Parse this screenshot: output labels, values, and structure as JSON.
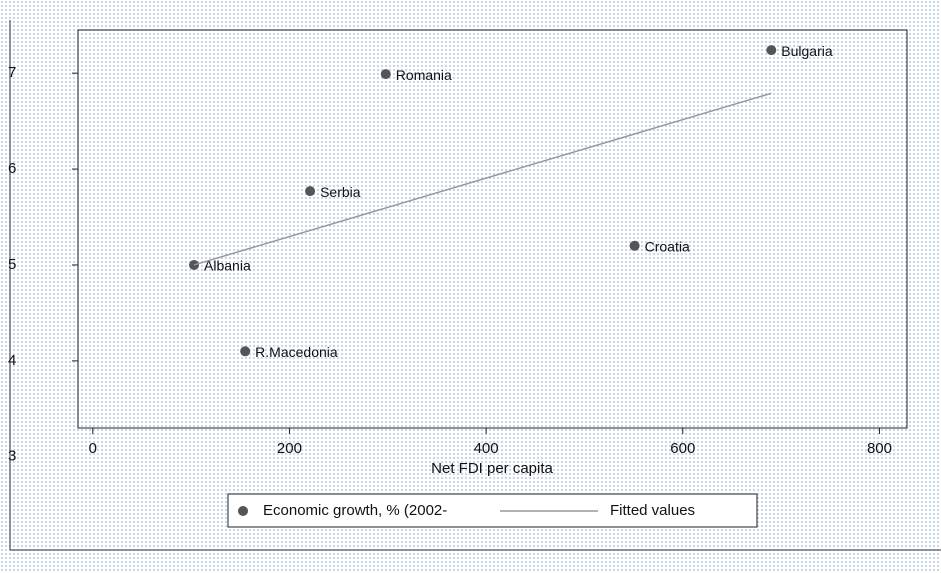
{
  "chart_data": {
    "type": "scatter",
    "x_label": "Net FDI per capita",
    "xlim": [
      -15,
      828
    ],
    "xticks": [
      0,
      200,
      400,
      600,
      800
    ],
    "ylim": [
      3.3,
      7.45
    ],
    "yticks": [
      3,
      4,
      5,
      6,
      7
    ],
    "series": [
      {
        "name": "Economic growth, % (2002-",
        "type": "scatter",
        "color": "#555555",
        "x": [
          690,
          298,
          221,
          551,
          103,
          155
        ],
        "values": [
          7.24,
          6.99,
          5.77,
          5.2,
          5.0,
          4.1
        ],
        "labels": [
          "Bulgaria",
          "Romania",
          "Serbia",
          "Croatia",
          "Albania",
          "R.Macedonia"
        ]
      },
      {
        "name": "Fitted values",
        "type": "line",
        "color": "#999999",
        "x": [
          103,
          690
        ],
        "values": [
          5.0,
          6.79
        ]
      }
    ]
  }
}
